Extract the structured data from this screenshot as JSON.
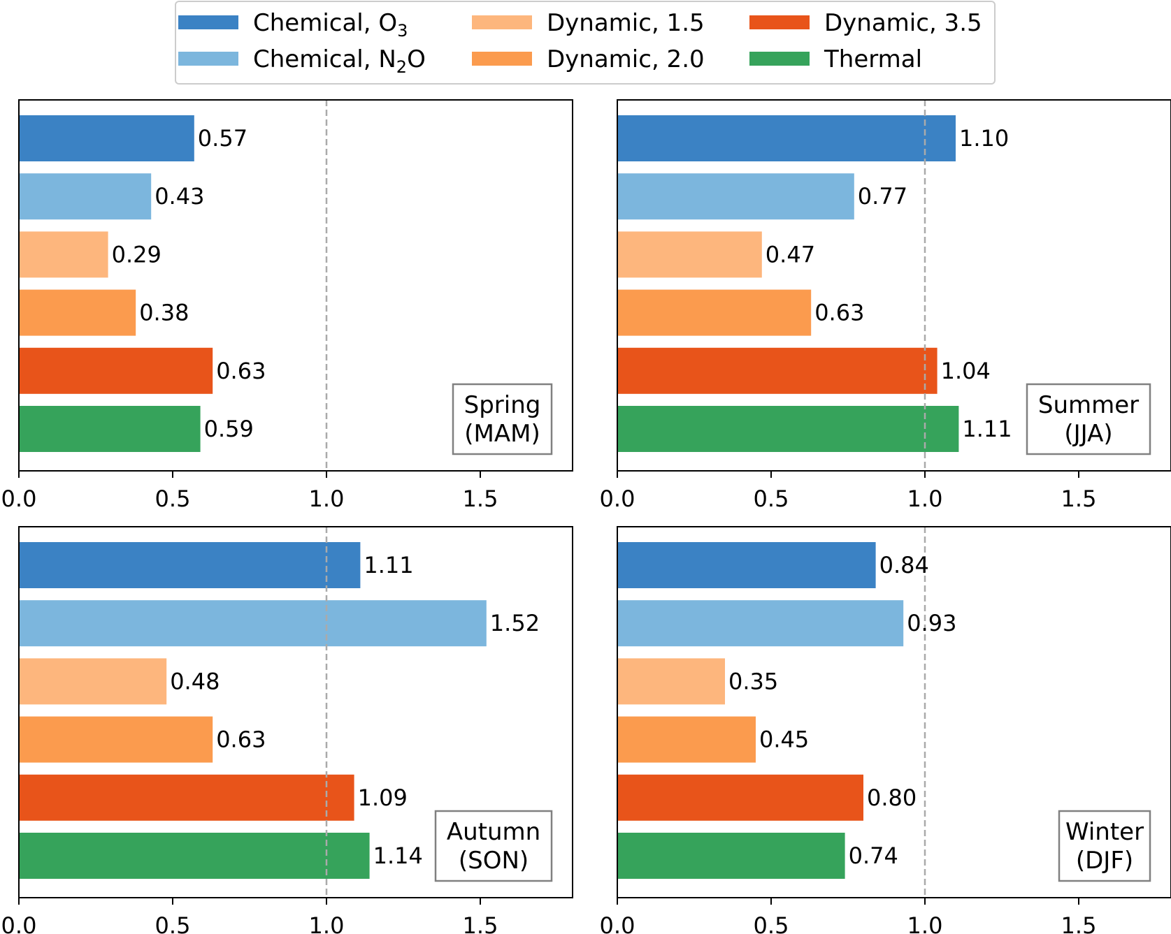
{
  "legend": [
    {
      "label": "Chemical, O",
      "sub": "3",
      "suffix": "",
      "color": "#3b82c4"
    },
    {
      "label": "Chemical, N",
      "sub": "2",
      "suffix": "O",
      "color": "#7cb6dd"
    },
    {
      "label": "Dynamic, 1.5",
      "sub": "",
      "suffix": "",
      "color": "#fdb67d"
    },
    {
      "label": "Dynamic, 2.0",
      "sub": "",
      "suffix": "",
      "color": "#fb9b4e"
    },
    {
      "label": "Dynamic, 3.5",
      "sub": "",
      "suffix": "",
      "color": "#e8541a"
    },
    {
      "label": "Thermal",
      "sub": "",
      "suffix": "",
      "color": "#36a35b"
    }
  ],
  "colors": {
    "axis": "#000000",
    "reference_line": "#aaaaaa",
    "panel_label_border": "#808080"
  },
  "chart_data": [
    {
      "type": "bar",
      "orientation": "horizontal",
      "panel_label": [
        "Spring",
        "(MAM)"
      ],
      "categories": [
        "Chemical, O3",
        "Chemical, N2O",
        "Dynamic, 1.5",
        "Dynamic, 2.0",
        "Dynamic, 3.5",
        "Thermal"
      ],
      "values": [
        0.57,
        0.43,
        0.29,
        0.38,
        0.63,
        0.59
      ],
      "value_labels": [
        "0.57",
        "0.43",
        "0.29",
        "0.38",
        "0.63",
        "0.59"
      ],
      "xlim": [
        0,
        1.8
      ],
      "xticks": [
        "0.0",
        "0.5",
        "1.0",
        "1.5"
      ],
      "reference_line": 1.0,
      "xlabel": "",
      "ylabel": "",
      "title": "",
      "grid": false
    },
    {
      "type": "bar",
      "orientation": "horizontal",
      "panel_label": [
        "Summer",
        "(JJA)"
      ],
      "categories": [
        "Chemical, O3",
        "Chemical, N2O",
        "Dynamic, 1.5",
        "Dynamic, 2.0",
        "Dynamic, 3.5",
        "Thermal"
      ],
      "values": [
        1.1,
        0.77,
        0.47,
        0.63,
        1.04,
        1.11
      ],
      "value_labels": [
        "1.10",
        "0.77",
        "0.47",
        "0.63",
        "1.04",
        "1.11"
      ],
      "xlim": [
        0,
        1.8
      ],
      "xticks": [
        "0.0",
        "0.5",
        "1.0",
        "1.5"
      ],
      "reference_line": 1.0,
      "xlabel": "",
      "ylabel": "",
      "title": "",
      "grid": false
    },
    {
      "type": "bar",
      "orientation": "horizontal",
      "panel_label": [
        "Autumn",
        "(SON)"
      ],
      "categories": [
        "Chemical, O3",
        "Chemical, N2O",
        "Dynamic, 1.5",
        "Dynamic, 2.0",
        "Dynamic, 3.5",
        "Thermal"
      ],
      "values": [
        1.11,
        1.52,
        0.48,
        0.63,
        1.09,
        1.14
      ],
      "value_labels": [
        "1.11",
        "1.52",
        "0.48",
        "0.63",
        "1.09",
        "1.14"
      ],
      "xlim": [
        0,
        1.8
      ],
      "xticks": [
        "0.0",
        "0.5",
        "1.0",
        "1.5"
      ],
      "reference_line": 1.0,
      "xlabel": "",
      "ylabel": "",
      "title": "",
      "grid": false
    },
    {
      "type": "bar",
      "orientation": "horizontal",
      "panel_label": [
        "Winter",
        "(DJF)"
      ],
      "categories": [
        "Chemical, O3",
        "Chemical, N2O",
        "Dynamic, 1.5",
        "Dynamic, 2.0",
        "Dynamic, 3.5",
        "Thermal"
      ],
      "values": [
        0.84,
        0.93,
        0.35,
        0.45,
        0.8,
        0.74
      ],
      "value_labels": [
        "0.84",
        "0.93",
        "0.35",
        "0.45",
        "0.80",
        "0.74"
      ],
      "xlim": [
        0,
        1.8
      ],
      "xticks": [
        "0.0",
        "0.5",
        "1.0",
        "1.5"
      ],
      "reference_line": 1.0,
      "xlabel": "",
      "ylabel": "",
      "title": "",
      "grid": false
    }
  ]
}
